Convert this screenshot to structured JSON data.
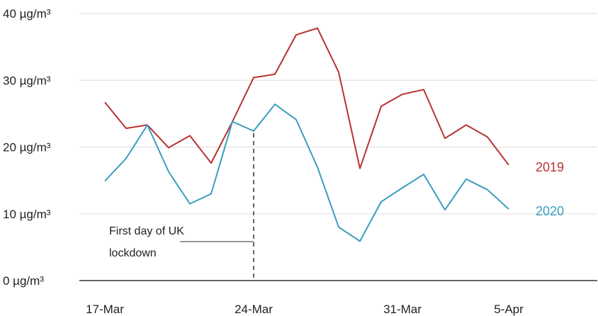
{
  "chart_data": {
    "type": "line",
    "title": "",
    "xlabel": "",
    "ylabel": "",
    "ylim": [
      0,
      40
    ],
    "y_ticks": [
      0,
      10,
      20,
      30,
      40
    ],
    "y_tick_labels": [
      "0 µg/m³",
      "10 µg/m³",
      "20 µg/m³",
      "30 µg/m³",
      "40 µg/m³"
    ],
    "x_ticks": [
      "17-Mar",
      "24-Mar",
      "31-Mar",
      "5-Apr"
    ],
    "x": [
      "17-Mar",
      "18-Mar",
      "19-Mar",
      "20-Mar",
      "21-Mar",
      "22-Mar",
      "23-Mar",
      "24-Mar",
      "25-Mar",
      "26-Mar",
      "27-Mar",
      "28-Mar",
      "29-Mar",
      "30-Mar",
      "31-Mar",
      "1-Apr",
      "2-Apr",
      "3-Apr",
      "4-Apr",
      "5-Apr"
    ],
    "grid": true,
    "legend": "end-of-line labels",
    "series": [
      {
        "name": "2019",
        "color": "#b83232",
        "values": [
          26.7,
          22.8,
          23.3,
          19.9,
          21.7,
          17.6,
          23.8,
          30.4,
          30.9,
          36.8,
          37.8,
          31.2,
          16.8,
          26.1,
          27.9,
          28.6,
          21.3,
          23.3,
          21.5,
          17.3
        ]
      },
      {
        "name": "2020",
        "color": "#3a9dbf",
        "values": [
          14.9,
          18.3,
          23.3,
          16.3,
          11.5,
          13.0,
          23.8,
          22.4,
          26.4,
          24.1,
          17.0,
          8.0,
          5.9,
          11.8,
          13.9,
          15.9,
          10.6,
          15.2,
          13.6,
          10.7
        ]
      }
    ],
    "annotation": {
      "x": "24-Mar",
      "lines": [
        "First day of UK",
        "lockdown"
      ],
      "line_style": "dashed"
    }
  }
}
